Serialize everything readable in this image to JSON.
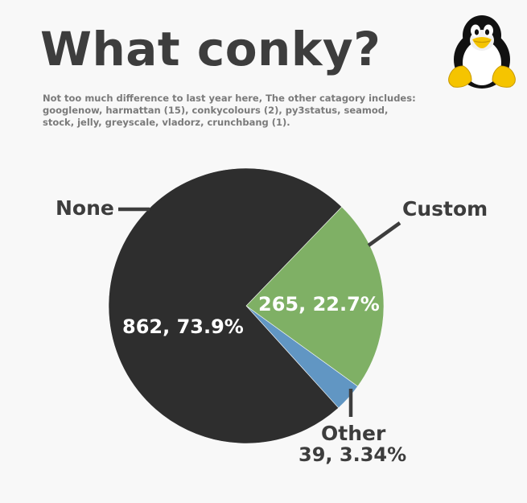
{
  "chart_data": {
    "type": "pie",
    "title": "What conky?",
    "subtitle": "Not too much difference to last year here, The other catagory includes: googlenow, harmattan (15), conkycolours (2), py3status, seamod, stock, jelly, greyscale, vladorz, crunchbang (1).",
    "categories": [
      "None",
      "Custom",
      "Other"
    ],
    "values": [
      862,
      265,
      39
    ],
    "value_labels": [
      "862, 73.9%",
      "265, 22.7%",
      "39, 3.34%"
    ],
    "colors": [
      "#2e2e2e",
      "#7fb065",
      "#6196c3"
    ],
    "legend": "none"
  },
  "logo": {
    "icon": "tux-penguin-icon"
  }
}
